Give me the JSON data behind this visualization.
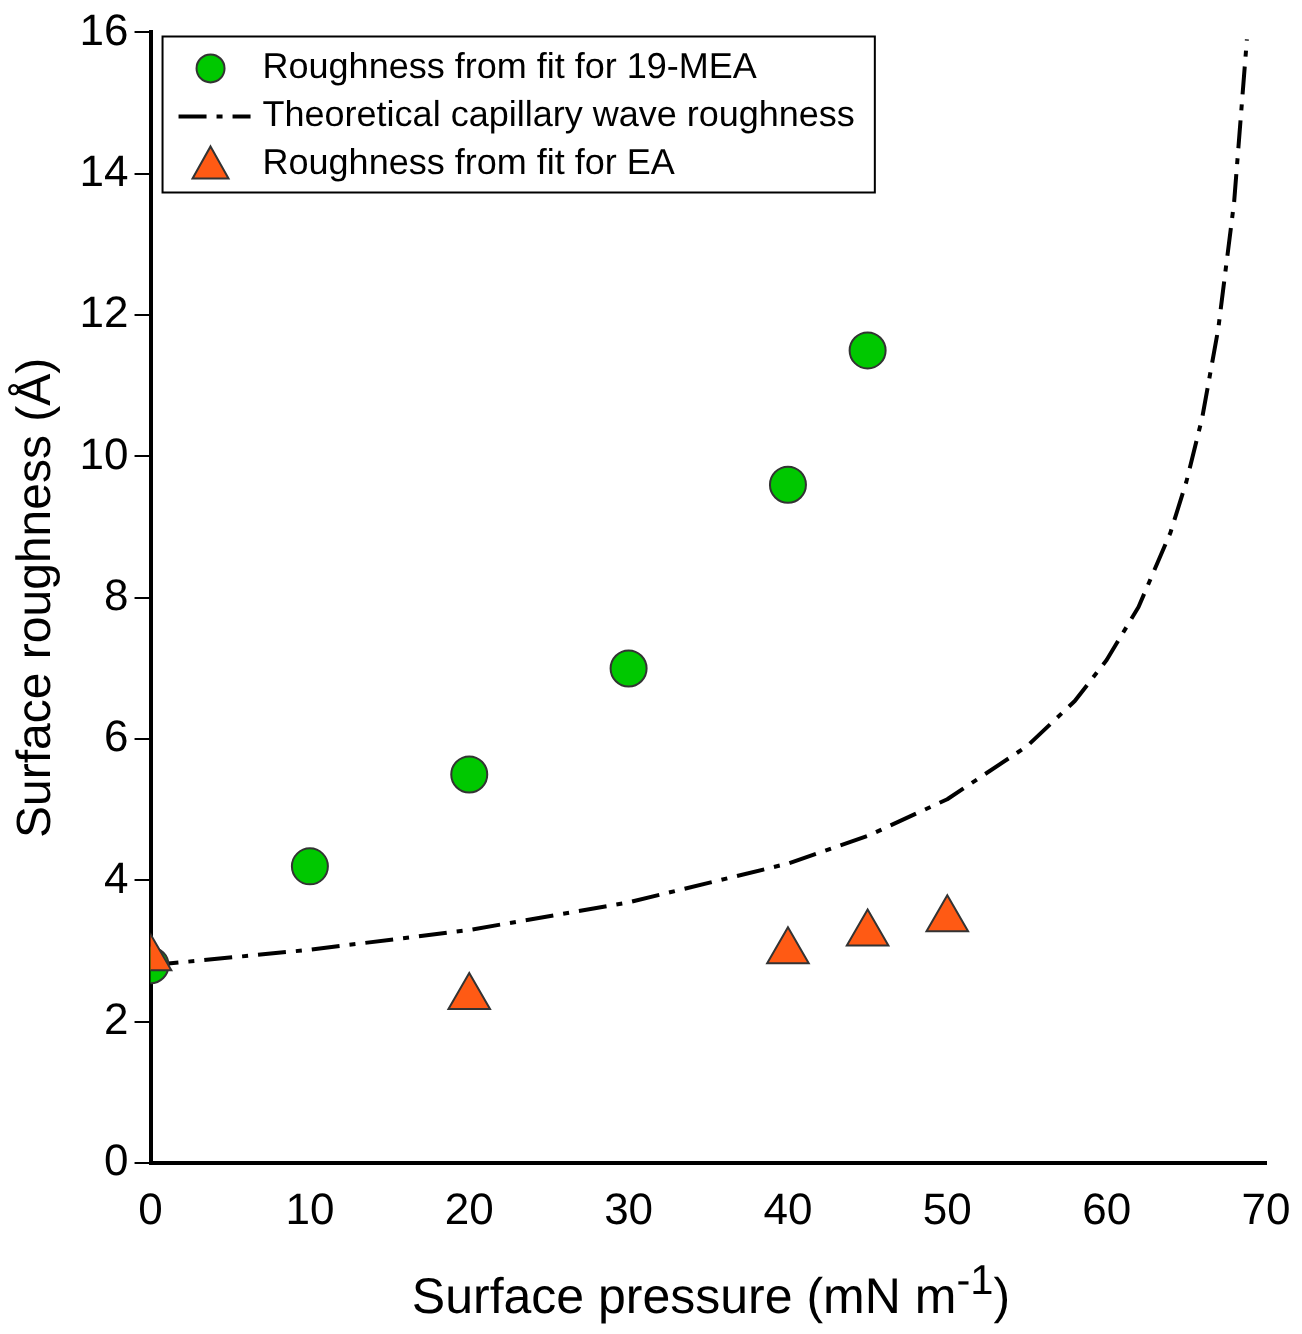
{
  "chart_data": {
    "type": "scatter",
    "xlabel": "Surface pressure (mN m$^{-1}$)",
    "ylabel": "Surface roughness (Å)",
    "xlim": [
      0,
      70
    ],
    "xticks": [
      0,
      10,
      20,
      30,
      40,
      50,
      60,
      70
    ],
    "ylim": [
      0,
      16
    ],
    "yticks": [
      0,
      2,
      4,
      6,
      8,
      10,
      12,
      14,
      16
    ],
    "grid": false,
    "legend": "top left",
    "series": [
      {
        "name": "Roughness from fit for 19-MEA",
        "type": "scatter",
        "marker": "circle",
        "color": "#00c800",
        "x": [
          0,
          10,
          20,
          30,
          40,
          45
        ],
        "values": [
          2.8,
          4.2,
          5.5,
          7.0,
          9.6,
          11.5
        ]
      },
      {
        "name": "Theoretical capillary wave roughness",
        "type": "line",
        "marker": "none",
        "line_style": "dashed",
        "color": "#000000",
        "x": [
          0,
          10,
          20,
          30,
          40,
          45,
          50,
          55,
          58,
          60,
          62,
          64,
          65,
          66,
          67,
          68,
          68.8
        ],
        "values": [
          2.8,
          3.02,
          3.3,
          3.69,
          4.24,
          4.63,
          5.15,
          5.9,
          6.54,
          7.12,
          7.87,
          8.92,
          9.64,
          10.55,
          11.8,
          13.6,
          15.9
        ]
      },
      {
        "name": "Roughness from fit for EA",
        "type": "scatter",
        "marker": "triangle",
        "color": "#ff5a14",
        "x": [
          0,
          20,
          40,
          45,
          50
        ],
        "values": [
          2.9,
          2.35,
          3.0,
          3.25,
          3.45
        ]
      }
    ]
  }
}
